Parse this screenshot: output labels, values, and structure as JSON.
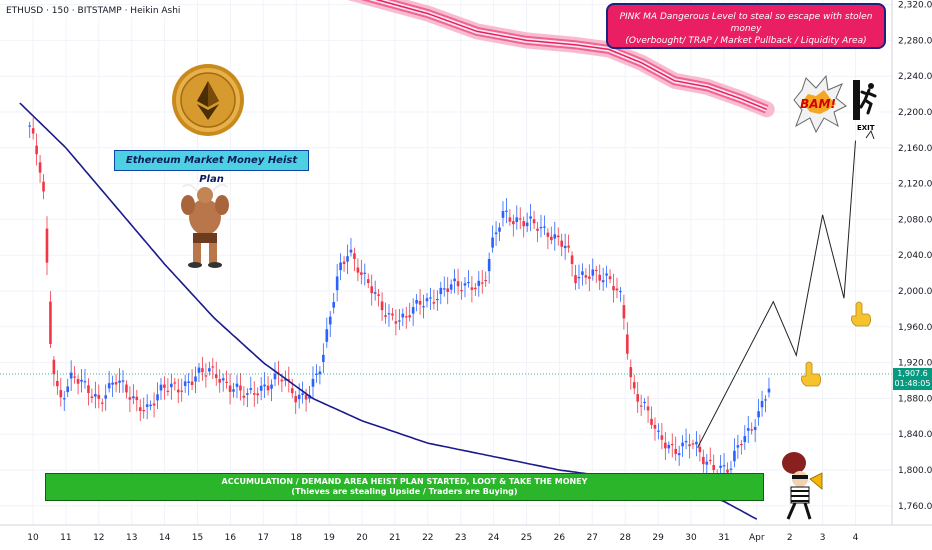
{
  "header": {
    "text": "ETHUSD · 150 · BITSTAMP · Heikin Ashi"
  },
  "chart_data": {
    "type": "candlestick",
    "symbol": "ETHUSD",
    "interval": "150",
    "exchange": "BITSTAMP",
    "style": "Heikin Ashi",
    "ylim": [
      1740,
      2330
    ],
    "y_ticks": [
      "2,320.00",
      "2,280.00",
      "2,240.00",
      "2,200.00",
      "2,160.00",
      "2,120.00",
      "2,080.00",
      "2,040.00",
      "2,000.00",
      "1,960.00",
      "1,920.00",
      "1,880.00",
      "1,840.00",
      "1,800.00",
      "1,760.00"
    ],
    "x_ticks": [
      "10",
      "11",
      "12",
      "13",
      "14",
      "15",
      "16",
      "17",
      "18",
      "19",
      "20",
      "21",
      "22",
      "23",
      "24",
      "25",
      "26",
      "27",
      "28",
      "29",
      "30",
      "31",
      "Apr",
      "2",
      "3",
      "4"
    ],
    "current_price": "1,907.6",
    "countdown": "01:48:05",
    "close_anchors": [
      {
        "d": 9.9,
        "p": 2185
      },
      {
        "d": 10.3,
        "p": 2120
      },
      {
        "d": 10.55,
        "p": 1930
      },
      {
        "d": 10.8,
        "p": 1880
      },
      {
        "d": 11.2,
        "p": 1905
      },
      {
        "d": 11.6,
        "p": 1890
      },
      {
        "d": 12.0,
        "p": 1880
      },
      {
        "d": 12.5,
        "p": 1900
      },
      {
        "d": 13.0,
        "p": 1880
      },
      {
        "d": 13.5,
        "p": 1870
      },
      {
        "d": 14.0,
        "p": 1890
      },
      {
        "d": 14.5,
        "p": 1895
      },
      {
        "d": 15.0,
        "p": 1905
      },
      {
        "d": 15.5,
        "p": 1910
      },
      {
        "d": 16.0,
        "p": 1895
      },
      {
        "d": 16.5,
        "p": 1880
      },
      {
        "d": 17.0,
        "p": 1895
      },
      {
        "d": 17.5,
        "p": 1905
      },
      {
        "d": 18.0,
        "p": 1880
      },
      {
        "d": 18.4,
        "p": 1890
      },
      {
        "d": 18.8,
        "p": 1920
      },
      {
        "d": 19.3,
        "p": 2025
      },
      {
        "d": 19.6,
        "p": 2050
      },
      {
        "d": 20.0,
        "p": 2015
      },
      {
        "d": 20.3,
        "p": 2000
      },
      {
        "d": 20.8,
        "p": 1975
      },
      {
        "d": 21.3,
        "p": 1965
      },
      {
        "d": 21.8,
        "p": 1990
      },
      {
        "d": 22.3,
        "p": 1995
      },
      {
        "d": 22.8,
        "p": 2005
      },
      {
        "d": 23.3,
        "p": 2010
      },
      {
        "d": 23.7,
        "p": 2005
      },
      {
        "d": 24.0,
        "p": 2055
      },
      {
        "d": 24.3,
        "p": 2090
      },
      {
        "d": 24.7,
        "p": 2080
      },
      {
        "d": 25.0,
        "p": 2075
      },
      {
        "d": 25.4,
        "p": 2070
      },
      {
        "d": 25.8,
        "p": 2065
      },
      {
        "d": 26.2,
        "p": 2050
      },
      {
        "d": 26.5,
        "p": 2010
      },
      {
        "d": 27.0,
        "p": 2025
      },
      {
        "d": 27.5,
        "p": 2010
      },
      {
        "d": 27.9,
        "p": 1990
      },
      {
        "d": 28.2,
        "p": 1895
      },
      {
        "d": 28.6,
        "p": 1870
      },
      {
        "d": 29.0,
        "p": 1835
      },
      {
        "d": 29.5,
        "p": 1825
      },
      {
        "d": 30.0,
        "p": 1830
      },
      {
        "d": 30.4,
        "p": 1810
      },
      {
        "d": 30.8,
        "p": 1805
      },
      {
        "d": 31.2,
        "p": 1800
      },
      {
        "d": 31.5,
        "p": 1830
      },
      {
        "d": 31.8,
        "p": 1845
      },
      {
        "d": 32.1,
        "p": 1870
      },
      {
        "d": 32.45,
        "p": 1900
      }
    ],
    "blue_ma": [
      {
        "d": 9.6,
        "p": 2210
      },
      {
        "d": 11.0,
        "p": 2160
      },
      {
        "d": 12.5,
        "p": 2095
      },
      {
        "d": 14.0,
        "p": 2030
      },
      {
        "d": 15.5,
        "p": 1970
      },
      {
        "d": 17.0,
        "p": 1920
      },
      {
        "d": 18.5,
        "p": 1880
      },
      {
        "d": 20.0,
        "p": 1855
      },
      {
        "d": 22.0,
        "p": 1830
      },
      {
        "d": 24.0,
        "p": 1815
      },
      {
        "d": 26.0,
        "p": 1800
      },
      {
        "d": 28.0,
        "p": 1790
      },
      {
        "d": 30.0,
        "p": 1777
      },
      {
        "d": 31.0,
        "p": 1765
      },
      {
        "d": 32.0,
        "p": 1745
      }
    ],
    "pink_ma": [
      {
        "d": 19.0,
        "p": 2340
      },
      {
        "d": 20.5,
        "p": 2325
      },
      {
        "d": 22.0,
        "p": 2310
      },
      {
        "d": 23.5,
        "p": 2290
      },
      {
        "d": 25.0,
        "p": 2280
      },
      {
        "d": 26.5,
        "p": 2275
      },
      {
        "d": 27.5,
        "p": 2270
      },
      {
        "d": 28.5,
        "p": 2255
      },
      {
        "d": 29.5,
        "p": 2235
      },
      {
        "d": 30.5,
        "p": 2228
      },
      {
        "d": 31.5,
        "p": 2215
      },
      {
        "d": 32.3,
        "p": 2203
      }
    ],
    "projection_path": [
      {
        "d": 30.2,
        "p": 1825
      },
      {
        "d": 32.5,
        "p": 1988
      },
      {
        "d": 33.2,
        "p": 1928
      },
      {
        "d": 34.0,
        "p": 2085
      },
      {
        "d": 34.65,
        "p": 1992
      },
      {
        "d": 35.0,
        "p": 2168
      }
    ],
    "accumulation_zone": {
      "from": 9.95,
      "to": 32.2,
      "top": 1793,
      "bottom": 1765
    }
  },
  "annotations": {
    "callout_line1": "PINK MA Dangerous Level to steal so escape with stolen money",
    "callout_line2": "(Overbought/ TRAP / Market Pullback / Liquidity Area)",
    "plan_title": "Ethereum Market Money Heist Plan",
    "zone_line1": "ACCUMULATION / DEMAND AREA HEIST PLAN STARTED, LOOT & TAKE THE MONEY",
    "zone_line2": "(Thieves are stealing Upside / Traders are Buying)",
    "bam_text": "BAM!",
    "exit_text": "EXIT",
    "coin_glyph": "ethereum-logo",
    "bull_glyph": "bull-flexing"
  },
  "colors": {
    "up": "#2962ff",
    "down": "#f23645",
    "blue_ma": "#1a1a8c",
    "pink_ma": "#e91e63",
    "zone": "#2bb52b",
    "callout": "#e91e63",
    "price_tag": "#089981"
  }
}
